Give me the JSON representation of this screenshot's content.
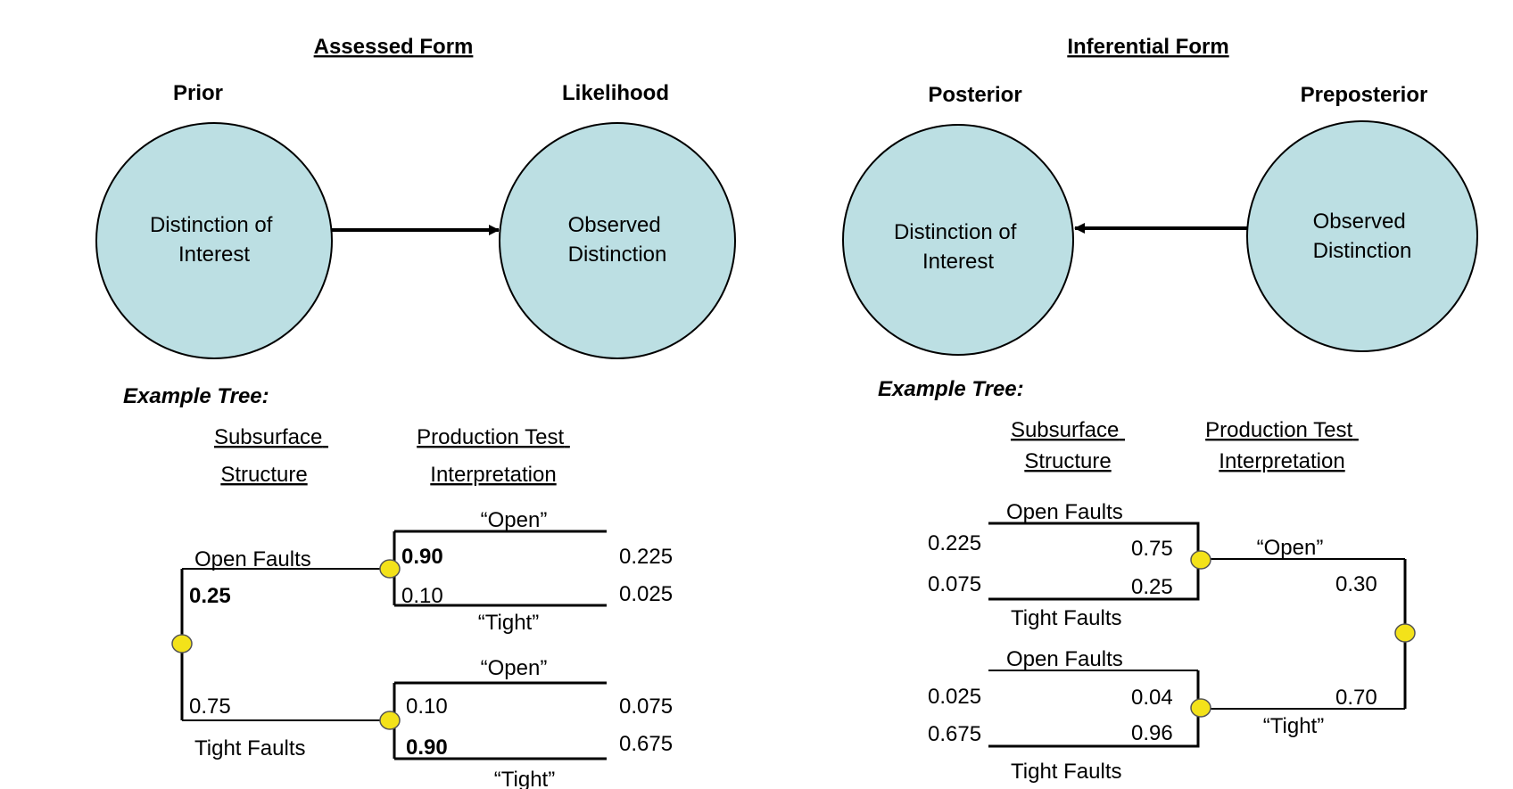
{
  "assessed": {
    "title": "Assessed Form",
    "prior_label": "Prior",
    "likelihood_label": "Likelihood",
    "node_left": [
      "Distinction of",
      "Interest"
    ],
    "node_right": [
      "Observed",
      "Distinction"
    ],
    "example": "Example Tree:",
    "col1": [
      "Subsurface",
      "Structure"
    ],
    "col2": [
      "Production Test",
      "Interpretation"
    ],
    "tree": {
      "open_faults": "Open Faults",
      "tight_faults": "Tight Faults",
      "p_open": "0.25",
      "p_tight": "0.75",
      "upper": {
        "open": "“Open”",
        "tight": "“Tight”",
        "p_open": "0.90",
        "p_tight": "0.10",
        "j_open": "0.225",
        "j_tight": "0.025"
      },
      "lower": {
        "open": "“Open”",
        "tight": "“Tight”",
        "p_open": "0.10",
        "p_tight": "0.90",
        "j_open": "0.075",
        "j_tight": "0.675"
      }
    }
  },
  "inferential": {
    "title": "Inferential Form",
    "posterior_label": "Posterior",
    "preposterior_label": "Preposterior",
    "node_left": [
      "Distinction of",
      "Interest"
    ],
    "node_right": [
      "Observed",
      "Distinction"
    ],
    "example": "Example Tree:",
    "col1": [
      "Subsurface",
      "Structure"
    ],
    "col2": [
      "Production Test",
      "Interpretation"
    ],
    "tree": {
      "open": "“Open”",
      "tight": "“Tight”",
      "p_open": "0.30",
      "p_tight": "0.70",
      "upper": {
        "open_faults": "Open Faults",
        "tight_faults": "Tight Faults",
        "p_open": "0.75",
        "p_tight": "0.25",
        "j_open": "0.225",
        "j_tight": "0.075"
      },
      "lower": {
        "open_faults": "Open Faults",
        "tight_faults": "Tight Faults",
        "p_open": "0.04",
        "p_tight": "0.96",
        "j_open": "0.025",
        "j_tight": "0.675"
      }
    }
  }
}
